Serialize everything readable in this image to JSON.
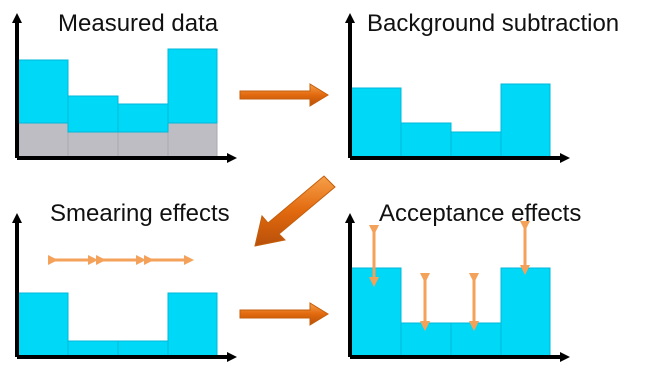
{
  "titles": {
    "measured": "Measured data",
    "background": "Background subtraction",
    "smearing": "Smearing effects",
    "acceptance": "Acceptance effects"
  },
  "colors": {
    "signal": "#00D8F8",
    "background": "#BDBDC3",
    "axis": "#000000",
    "arrow_orange": "#E8741A",
    "double_arrow": "#F4A15A"
  },
  "panels": {
    "measured": {
      "signal": [
        3.2,
        2.2,
        1.9,
        3.8
      ],
      "background": [
        1.8,
        1.4,
        1.4,
        1.8
      ]
    },
    "background_subtracted": {
      "signal": [
        4.0,
        2.0,
        1.6,
        3.9
      ]
    },
    "smearing": {
      "signal": [
        3.3,
        1.0,
        1.0,
        3.3
      ]
    },
    "acceptance": {
      "signal": [
        4.4,
        2.6,
        2.6,
        4.4
      ]
    }
  }
}
